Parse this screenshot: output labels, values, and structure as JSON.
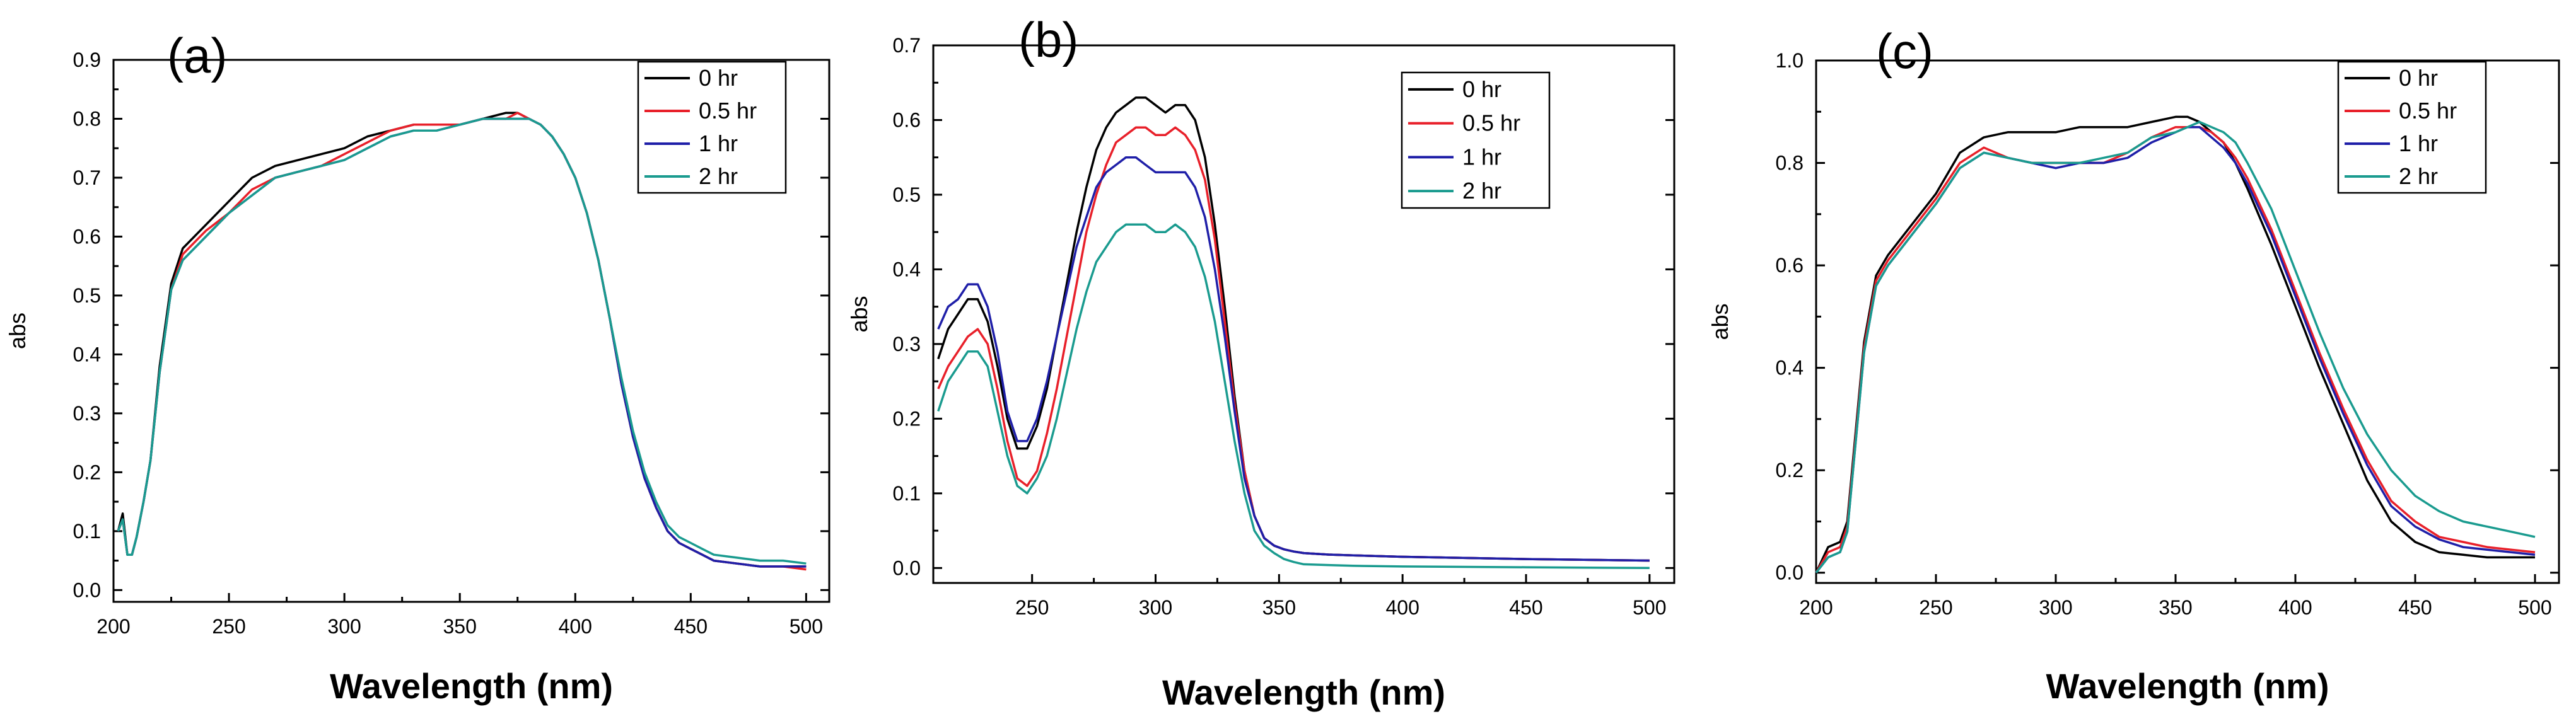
{
  "chart_data": [
    {
      "type": "line",
      "panel_label": "(a)",
      "xlabel": "Wavelength (nm)",
      "ylabel": "abs",
      "xlim": [
        200,
        510
      ],
      "ylim": [
        -0.02,
        0.9
      ],
      "xticks": [
        200,
        250,
        300,
        350,
        400,
        450,
        500
      ],
      "xtick_labels": [
        "200",
        "250",
        "300",
        "350",
        "400",
        "450",
        "500"
      ],
      "yticks": [
        0.0,
        0.1,
        0.2,
        0.3,
        0.4,
        0.5,
        0.6,
        0.7,
        0.8,
        0.9
      ],
      "ytick_labels": [
        "0.0",
        "0.1",
        "0.2",
        "0.3",
        "0.4",
        "0.5",
        "0.6",
        "0.7",
        "0.8",
        "0.9"
      ],
      "legend_position": "top-right",
      "x": [
        202,
        204,
        206,
        208,
        210,
        213,
        216,
        220,
        225,
        230,
        240,
        250,
        260,
        270,
        280,
        290,
        300,
        310,
        320,
        330,
        340,
        350,
        360,
        370,
        375,
        380,
        385,
        390,
        395,
        400,
        405,
        410,
        415,
        420,
        425,
        430,
        435,
        440,
        445,
        450,
        455,
        460,
        470,
        480,
        490,
        500
      ],
      "series": [
        {
          "name": "0 hr",
          "color": "#000000",
          "values": [
            0.1,
            0.13,
            0.06,
            0.06,
            0.09,
            0.15,
            0.22,
            0.38,
            0.52,
            0.58,
            0.62,
            0.66,
            0.7,
            0.72,
            0.73,
            0.74,
            0.75,
            0.77,
            0.78,
            0.79,
            0.79,
            0.79,
            0.8,
            0.81,
            0.81,
            0.8,
            0.79,
            0.77,
            0.74,
            0.7,
            0.64,
            0.56,
            0.46,
            0.35,
            0.26,
            0.19,
            0.14,
            0.1,
            0.08,
            0.07,
            0.06,
            0.05,
            0.045,
            0.04,
            0.04,
            0.04
          ]
        },
        {
          "name": "0.5 hr",
          "color": "#e8202a",
          "values": [
            0.1,
            0.12,
            0.06,
            0.06,
            0.09,
            0.15,
            0.22,
            0.37,
            0.51,
            0.57,
            0.61,
            0.64,
            0.68,
            0.7,
            0.71,
            0.72,
            0.74,
            0.76,
            0.78,
            0.79,
            0.79,
            0.79,
            0.8,
            0.8,
            0.81,
            0.8,
            0.79,
            0.77,
            0.74,
            0.7,
            0.64,
            0.56,
            0.46,
            0.35,
            0.26,
            0.19,
            0.14,
            0.1,
            0.08,
            0.07,
            0.06,
            0.05,
            0.045,
            0.04,
            0.04,
            0.035
          ]
        },
        {
          "name": "1 hr",
          "color": "#1f1fa8",
          "values": [
            0.1,
            0.12,
            0.06,
            0.06,
            0.09,
            0.15,
            0.22,
            0.37,
            0.51,
            0.56,
            0.6,
            0.64,
            0.67,
            0.7,
            0.71,
            0.72,
            0.73,
            0.75,
            0.77,
            0.78,
            0.78,
            0.79,
            0.8,
            0.8,
            0.8,
            0.8,
            0.79,
            0.77,
            0.74,
            0.7,
            0.64,
            0.56,
            0.46,
            0.35,
            0.26,
            0.19,
            0.14,
            0.1,
            0.08,
            0.07,
            0.06,
            0.05,
            0.045,
            0.04,
            0.04,
            0.04
          ]
        },
        {
          "name": "2 hr",
          "color": "#1a9b8f",
          "values": [
            0.1,
            0.12,
            0.06,
            0.06,
            0.09,
            0.15,
            0.22,
            0.37,
            0.51,
            0.56,
            0.6,
            0.64,
            0.67,
            0.7,
            0.71,
            0.72,
            0.73,
            0.75,
            0.77,
            0.78,
            0.78,
            0.79,
            0.8,
            0.8,
            0.8,
            0.8,
            0.79,
            0.77,
            0.74,
            0.7,
            0.64,
            0.56,
            0.46,
            0.36,
            0.27,
            0.2,
            0.15,
            0.11,
            0.09,
            0.08,
            0.07,
            0.06,
            0.055,
            0.05,
            0.05,
            0.045
          ]
        }
      ]
    },
    {
      "type": "line",
      "panel_label": "(b)",
      "xlabel": "Wavelength (nm)",
      "ylabel": "abs",
      "xlim": [
        210,
        510
      ],
      "ylim": [
        -0.02,
        0.7
      ],
      "xticks": [
        250,
        300,
        350,
        400,
        450,
        500
      ],
      "xtick_labels": [
        "250",
        "300",
        "350",
        "400",
        "450",
        "500"
      ],
      "yticks": [
        0.0,
        0.1,
        0.2,
        0.3,
        0.4,
        0.5,
        0.6,
        0.7
      ],
      "ytick_labels": [
        "0.0",
        "0.1",
        "0.2",
        "0.3",
        "0.4",
        "0.5",
        "0.6",
        "0.7"
      ],
      "legend_position": "top-right",
      "x": [
        212,
        216,
        220,
        224,
        228,
        232,
        236,
        240,
        244,
        248,
        252,
        256,
        260,
        264,
        268,
        272,
        276,
        280,
        284,
        288,
        292,
        296,
        300,
        304,
        308,
        312,
        316,
        320,
        324,
        328,
        332,
        336,
        340,
        344,
        348,
        352,
        356,
        360,
        370,
        380,
        400,
        450,
        500
      ],
      "series": [
        {
          "name": "0 hr",
          "color": "#000000",
          "values": [
            0.28,
            0.32,
            0.34,
            0.36,
            0.36,
            0.33,
            0.27,
            0.2,
            0.16,
            0.16,
            0.19,
            0.24,
            0.31,
            0.38,
            0.45,
            0.51,
            0.56,
            0.59,
            0.61,
            0.62,
            0.63,
            0.63,
            0.62,
            0.61,
            0.62,
            0.62,
            0.6,
            0.55,
            0.46,
            0.35,
            0.23,
            0.13,
            0.07,
            0.04,
            0.03,
            0.025,
            0.022,
            0.02,
            0.018,
            0.017,
            0.015,
            0.012,
            0.01
          ]
        },
        {
          "name": "0.5 hr",
          "color": "#e8202a",
          "values": [
            0.24,
            0.27,
            0.29,
            0.31,
            0.32,
            0.3,
            0.24,
            0.17,
            0.12,
            0.11,
            0.13,
            0.18,
            0.24,
            0.31,
            0.38,
            0.45,
            0.5,
            0.54,
            0.57,
            0.58,
            0.59,
            0.59,
            0.58,
            0.58,
            0.59,
            0.58,
            0.56,
            0.52,
            0.44,
            0.33,
            0.22,
            0.13,
            0.07,
            0.04,
            0.03,
            0.025,
            0.022,
            0.02,
            0.018,
            0.017,
            0.015,
            0.012,
            0.01
          ]
        },
        {
          "name": "1 hr",
          "color": "#1f1fa8",
          "values": [
            0.32,
            0.35,
            0.36,
            0.38,
            0.38,
            0.35,
            0.29,
            0.21,
            0.17,
            0.17,
            0.2,
            0.25,
            0.31,
            0.37,
            0.43,
            0.47,
            0.51,
            0.53,
            0.54,
            0.55,
            0.55,
            0.54,
            0.53,
            0.53,
            0.53,
            0.53,
            0.51,
            0.47,
            0.4,
            0.31,
            0.21,
            0.12,
            0.07,
            0.04,
            0.03,
            0.025,
            0.022,
            0.02,
            0.018,
            0.017,
            0.015,
            0.012,
            0.01
          ]
        },
        {
          "name": "2 hr",
          "color": "#1a9b8f",
          "values": [
            0.21,
            0.25,
            0.27,
            0.29,
            0.29,
            0.27,
            0.21,
            0.15,
            0.11,
            0.1,
            0.12,
            0.15,
            0.2,
            0.26,
            0.32,
            0.37,
            0.41,
            0.43,
            0.45,
            0.46,
            0.46,
            0.46,
            0.45,
            0.45,
            0.46,
            0.45,
            0.43,
            0.39,
            0.33,
            0.25,
            0.17,
            0.1,
            0.05,
            0.03,
            0.02,
            0.012,
            0.008,
            0.005,
            0.004,
            0.003,
            0.002,
            0.001,
            0.0
          ]
        }
      ]
    },
    {
      "type": "line",
      "panel_label": "(c)",
      "xlabel": "Wavelength (nm)",
      "ylabel": "abs",
      "xlim": [
        200,
        510
      ],
      "ylim": [
        -0.02,
        1.0
      ],
      "xticks": [
        200,
        250,
        300,
        350,
        400,
        450,
        500
      ],
      "xtick_labels": [
        "200",
        "250",
        "300",
        "350",
        "400",
        "450",
        "500"
      ],
      "yticks": [
        0.0,
        0.2,
        0.4,
        0.6,
        0.8,
        1.0
      ],
      "ytick_labels": [
        "0.0",
        "0.2",
        "0.4",
        "0.6",
        "0.8",
        "1.0"
      ],
      "legend_position": "top-right",
      "x": [
        200,
        205,
        210,
        213,
        216,
        220,
        225,
        230,
        240,
        250,
        260,
        270,
        280,
        290,
        300,
        310,
        320,
        330,
        340,
        350,
        355,
        360,
        365,
        370,
        375,
        380,
        390,
        400,
        410,
        420,
        430,
        440,
        450,
        460,
        470,
        480,
        490,
        500
      ],
      "series": [
        {
          "name": "0 hr",
          "color": "#000000",
          "values": [
            0.0,
            0.05,
            0.06,
            0.1,
            0.25,
            0.45,
            0.58,
            0.62,
            0.68,
            0.74,
            0.82,
            0.85,
            0.86,
            0.86,
            0.86,
            0.87,
            0.87,
            0.87,
            0.88,
            0.89,
            0.89,
            0.88,
            0.86,
            0.84,
            0.8,
            0.75,
            0.64,
            0.52,
            0.4,
            0.29,
            0.18,
            0.1,
            0.06,
            0.04,
            0.035,
            0.03,
            0.03,
            0.03
          ]
        },
        {
          "name": "0.5 hr",
          "color": "#e8202a",
          "values": [
            0.0,
            0.04,
            0.05,
            0.09,
            0.24,
            0.44,
            0.57,
            0.61,
            0.67,
            0.73,
            0.8,
            0.83,
            0.81,
            0.8,
            0.8,
            0.8,
            0.8,
            0.82,
            0.85,
            0.87,
            0.87,
            0.87,
            0.86,
            0.84,
            0.81,
            0.77,
            0.67,
            0.55,
            0.43,
            0.32,
            0.22,
            0.14,
            0.1,
            0.07,
            0.06,
            0.05,
            0.045,
            0.04
          ]
        },
        {
          "name": "1 hr",
          "color": "#1f1fa8",
          "values": [
            0.0,
            0.03,
            0.04,
            0.08,
            0.23,
            0.43,
            0.56,
            0.6,
            0.66,
            0.72,
            0.79,
            0.82,
            0.81,
            0.8,
            0.79,
            0.8,
            0.8,
            0.81,
            0.84,
            0.86,
            0.87,
            0.87,
            0.85,
            0.83,
            0.8,
            0.76,
            0.66,
            0.54,
            0.42,
            0.31,
            0.21,
            0.13,
            0.09,
            0.065,
            0.05,
            0.045,
            0.04,
            0.035
          ]
        },
        {
          "name": "2 hr",
          "color": "#1a9b8f",
          "values": [
            0.0,
            0.03,
            0.04,
            0.08,
            0.23,
            0.43,
            0.56,
            0.6,
            0.66,
            0.72,
            0.79,
            0.82,
            0.81,
            0.8,
            0.8,
            0.8,
            0.81,
            0.82,
            0.85,
            0.86,
            0.87,
            0.88,
            0.87,
            0.86,
            0.84,
            0.8,
            0.71,
            0.59,
            0.47,
            0.36,
            0.27,
            0.2,
            0.15,
            0.12,
            0.1,
            0.09,
            0.08,
            0.07
          ]
        }
      ]
    }
  ]
}
